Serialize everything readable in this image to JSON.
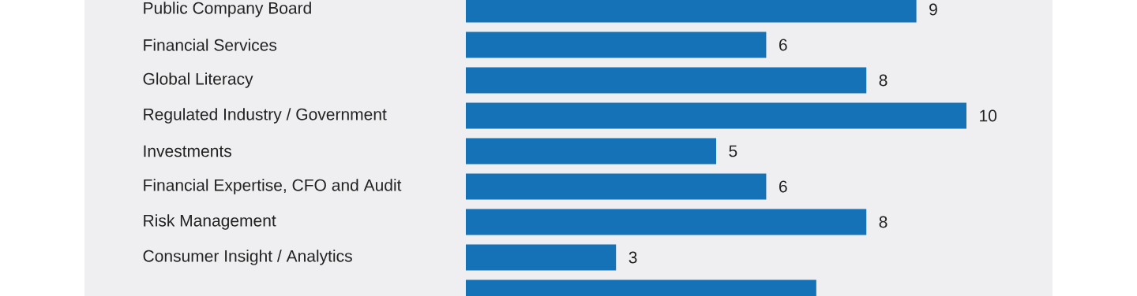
{
  "chart_data": {
    "type": "bar",
    "orientation": "horizontal",
    "categories": [
      "Public Company Board",
      "Financial Services",
      "Global Literacy",
      "Regulated Industry / Government",
      "Investments",
      "Financial Expertise, CFO and Audit",
      "Risk Management",
      "Consumer Insight / Analytics",
      null
    ],
    "values": [
      9,
      6,
      8,
      10,
      5,
      6,
      8,
      3,
      7
    ],
    "value_labels": [
      "9",
      "6",
      "8",
      "10",
      "5",
      "6",
      "8",
      "3",
      null
    ],
    "color": "#1572b6"
  }
}
